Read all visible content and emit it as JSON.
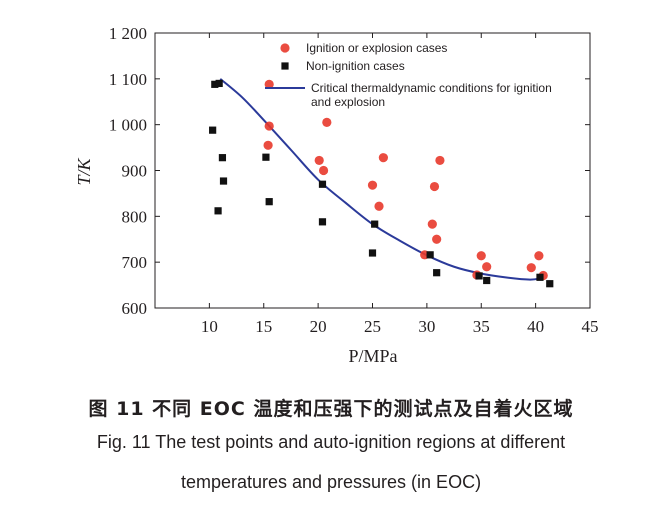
{
  "colors": {
    "ignition": "#e8392b",
    "non_ignition": "#111111",
    "curve": "#2b3a9a",
    "axis": "#231f20"
  },
  "chart_data": {
    "type": "scatter",
    "xlabel": "P/MPa",
    "ylabel": "T/K",
    "xlim": [
      5,
      45
    ],
    "ylim": [
      600,
      1200
    ],
    "x_ticks": [
      "10",
      "15",
      "20",
      "25",
      "30",
      "35",
      "40",
      "45"
    ],
    "y_ticks": [
      "600",
      "700",
      "800",
      "900",
      "1 000",
      "1 100",
      "1 200"
    ],
    "legend": {
      "placement": "top-right",
      "entries": [
        "Ignition or explosion cases",
        "Non-ignition cases",
        "Critical thermaldynamic conditions for ignition and explosion"
      ]
    },
    "series": [
      {
        "name": "Ignition or explosion cases",
        "marker": "circle",
        "points": [
          [
            15.5,
            1088
          ],
          [
            15.5,
            997
          ],
          [
            15.4,
            955
          ],
          [
            20.1,
            922
          ],
          [
            20.8,
            1005
          ],
          [
            20.5,
            900
          ],
          [
            25.0,
            868
          ],
          [
            25.6,
            822
          ],
          [
            26.0,
            928
          ],
          [
            30.5,
            783
          ],
          [
            30.9,
            750
          ],
          [
            30.7,
            865
          ],
          [
            31.2,
            922
          ],
          [
            29.8,
            716
          ],
          [
            34.6,
            672
          ],
          [
            35.0,
            714
          ],
          [
            35.5,
            690
          ],
          [
            39.6,
            688
          ],
          [
            40.3,
            714
          ],
          [
            40.7,
            671
          ]
        ]
      },
      {
        "name": "Non-ignition cases",
        "marker": "square",
        "points": [
          [
            10.5,
            1088
          ],
          [
            10.9,
            1090
          ],
          [
            10.3,
            988
          ],
          [
            11.2,
            928
          ],
          [
            11.3,
            877
          ],
          [
            10.8,
            812
          ],
          [
            15.2,
            929
          ],
          [
            15.5,
            832
          ],
          [
            20.4,
            870
          ],
          [
            20.4,
            788
          ],
          [
            25.2,
            783
          ],
          [
            25.0,
            720
          ],
          [
            30.3,
            716
          ],
          [
            30.9,
            677
          ],
          [
            34.8,
            670
          ],
          [
            35.5,
            660
          ],
          [
            40.4,
            667
          ],
          [
            41.3,
            653
          ]
        ]
      },
      {
        "name": "Critical thermaldynamic conditions for ignition and explosion",
        "marker": "line",
        "points": [
          [
            11.0,
            1100
          ],
          [
            13.0,
            1060
          ],
          [
            15.0,
            1010
          ],
          [
            17.5,
            945
          ],
          [
            20.0,
            880
          ],
          [
            22.5,
            830
          ],
          [
            25.0,
            783
          ],
          [
            27.5,
            747
          ],
          [
            30.0,
            715
          ],
          [
            32.5,
            690
          ],
          [
            35.0,
            675
          ],
          [
            37.5,
            666
          ],
          [
            39.5,
            662
          ],
          [
            40.5,
            665
          ]
        ]
      }
    ]
  },
  "caption": {
    "zh": "图 11   不同 EOC 温度和压强下的测试点及自着火区域",
    "en_line1": "Fig. 11    The test points and auto-ignition regions at different",
    "en_line2": "temperatures and pressures (in EOC)"
  }
}
